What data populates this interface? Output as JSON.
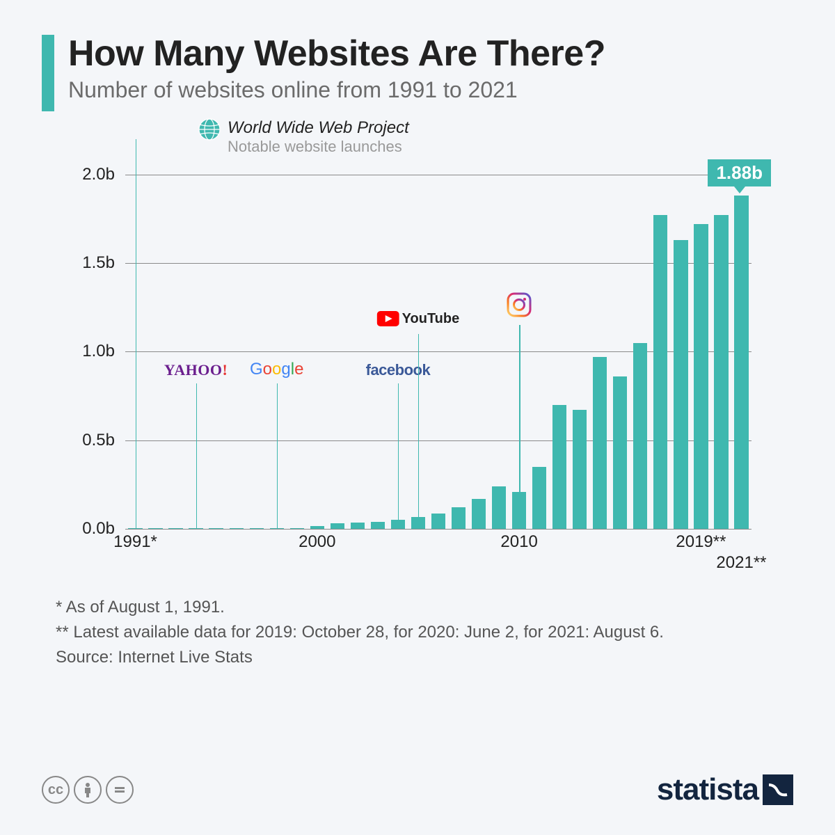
{
  "header": {
    "title": "How Many Websites Are There?",
    "subtitle": "Number of websites online from 1991 to 2021",
    "accent_color": "#3fb8af"
  },
  "chart": {
    "type": "bar",
    "bar_color": "#3fb8af",
    "background_color": "#f4f6f9",
    "grid_color": "#8a8a8a",
    "axis_label_fontsize": 24,
    "ylim": [
      0,
      2.2
    ],
    "ytick_step": 0.5,
    "yticks": [
      {
        "value": 0.0,
        "label": "0.0b"
      },
      {
        "value": 0.5,
        "label": "0.5b"
      },
      {
        "value": 1.0,
        "label": "1.0b"
      },
      {
        "value": 1.5,
        "label": "1.5b"
      },
      {
        "value": 2.0,
        "label": "2.0b"
      }
    ],
    "years": [
      1991,
      1992,
      1993,
      1994,
      1995,
      1996,
      1997,
      1998,
      1999,
      2000,
      2001,
      2002,
      2003,
      2004,
      2005,
      2006,
      2007,
      2008,
      2009,
      2010,
      2011,
      2012,
      2013,
      2014,
      2015,
      2016,
      2017,
      2018,
      2019,
      2020,
      2021
    ],
    "values": [
      1e-09,
      1e-08,
      1e-07,
      1e-06,
      1e-05,
      0.0001,
      0.001,
      0.002,
      0.003,
      0.017,
      0.03,
      0.035,
      0.04,
      0.05,
      0.065,
      0.085,
      0.12,
      0.17,
      0.24,
      0.21,
      0.35,
      0.7,
      0.67,
      0.97,
      0.86,
      1.05,
      1.77,
      1.63,
      1.72,
      1.77,
      1.88
    ],
    "xticks": [
      {
        "year": 1991,
        "label": "1991*"
      },
      {
        "year": 2000,
        "label": "2000"
      },
      {
        "year": 2010,
        "label": "2010"
      },
      {
        "year": 2019,
        "label": "2019**"
      },
      {
        "year": 2021,
        "label": "2021**",
        "offset": true
      }
    ],
    "callout": {
      "year": 2021,
      "label": "1.88b"
    },
    "legend": {
      "title": "World Wide Web Project",
      "subtitle": "Notable website launches",
      "globe_color": "#3fb8af"
    },
    "markers": [
      {
        "year": 1991,
        "name": "www",
        "line_height_b": 2.2
      },
      {
        "year": 1994,
        "name": "yahoo",
        "line_height_b": 0.82,
        "label": "YAHOO!"
      },
      {
        "year": 1998,
        "name": "google",
        "line_height_b": 0.82,
        "label": "Google"
      },
      {
        "year": 2004,
        "name": "facebook",
        "line_height_b": 0.82,
        "label": "facebook"
      },
      {
        "year": 2005,
        "name": "youtube",
        "line_height_b": 1.1,
        "label": "YouTube"
      },
      {
        "year": 2010,
        "name": "instagram",
        "line_height_b": 1.15
      }
    ]
  },
  "footnotes": {
    "note1": "*   As of August 1, 1991.",
    "note2": "** Latest available data for 2019: October 28, for 2020: June 2, for 2021: August 6.",
    "source": "Source: Internet Live Stats"
  },
  "footer": {
    "brand": "statista",
    "brand_color": "#13253f",
    "cc_icon_color": "#888888"
  }
}
